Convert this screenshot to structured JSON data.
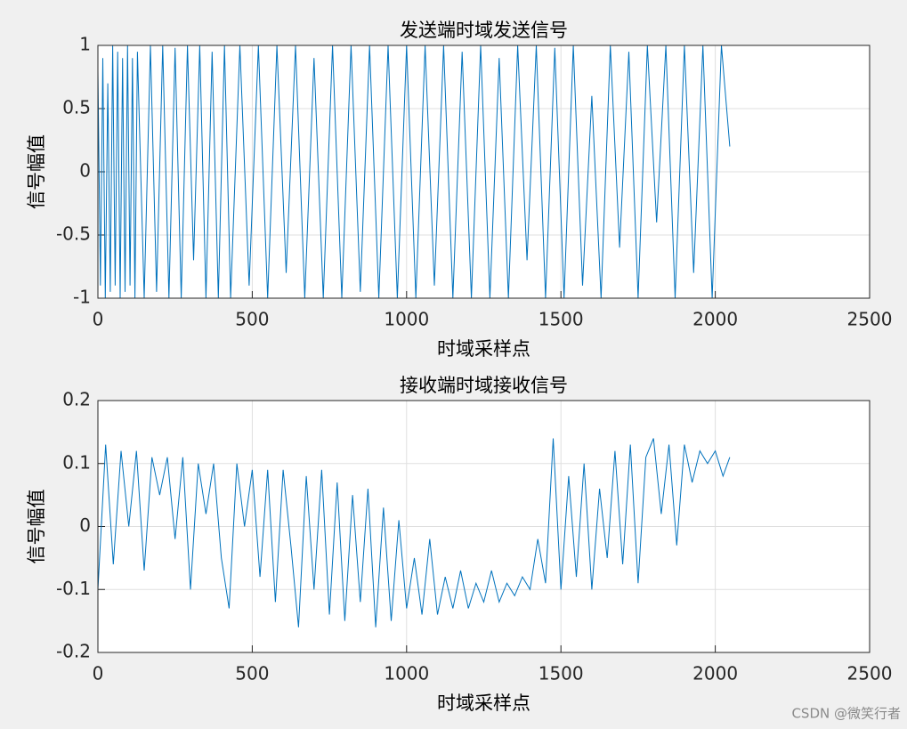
{
  "chart_data": [
    {
      "type": "line",
      "title": "发送端时域发送信号",
      "xlabel": "时域采样点",
      "ylabel": "信号幅值",
      "xlim": [
        0,
        2500
      ],
      "xticks": [
        0,
        500,
        1000,
        1500,
        2000,
        2500
      ],
      "ylim": [
        -1,
        1
      ],
      "yticks": [
        -1,
        -0.5,
        0,
        0.5,
        1
      ],
      "grid": true,
      "series": [
        {
          "color": "#0072bd",
          "x": [
            0,
            8,
            16,
            24,
            32,
            40,
            48,
            56,
            64,
            72,
            80,
            88,
            96,
            104,
            112,
            120,
            128,
            150,
            170,
            190,
            210,
            230,
            250,
            270,
            290,
            310,
            330,
            350,
            370,
            390,
            410,
            430,
            460,
            490,
            520,
            550,
            580,
            610,
            640,
            670,
            700,
            730,
            760,
            790,
            820,
            850,
            880,
            910,
            940,
            970,
            1000,
            1030,
            1060,
            1090,
            1120,
            1150,
            1180,
            1210,
            1240,
            1270,
            1300,
            1330,
            1360,
            1390,
            1420,
            1450,
            1480,
            1510,
            1540,
            1570,
            1600,
            1630,
            1660,
            1690,
            1720,
            1750,
            1780,
            1810,
            1840,
            1870,
            1900,
            1930,
            1960,
            1990,
            2020,
            2047
          ],
          "values": [
            0.8,
            -0.9,
            0.9,
            -1,
            0.7,
            -0.95,
            1,
            -0.9,
            0.95,
            -1,
            0.9,
            -0.95,
            1,
            -0.9,
            0.9,
            -1,
            0.95,
            -1,
            1,
            -0.95,
            1,
            -1,
            0.98,
            -1,
            1,
            -0.7,
            1,
            -1,
            0.95,
            -1,
            1,
            -1,
            1,
            -0.9,
            1,
            -1,
            1,
            -0.8,
            1,
            -1,
            0.9,
            -1,
            1,
            -1,
            1,
            -0.95,
            1,
            -1,
            1,
            -1,
            1,
            -1,
            1,
            -0.9,
            1,
            -1,
            0.95,
            -1,
            1,
            -1,
            0.9,
            -1,
            1,
            -0.7,
            1,
            -1,
            0.98,
            -1,
            1,
            -0.9,
            0.6,
            -1,
            1,
            -0.6,
            0.95,
            -1,
            1,
            -0.4,
            1,
            -1,
            1,
            -0.8,
            1,
            -1,
            1,
            0.2
          ]
        }
      ]
    },
    {
      "type": "line",
      "title": "接收端时域接收信号",
      "xlabel": "时域采样点",
      "ylabel": "信号幅值",
      "xlim": [
        0,
        2500
      ],
      "xticks": [
        0,
        500,
        1000,
        1500,
        2000,
        2500
      ],
      "ylim": [
        -0.2,
        0.2
      ],
      "yticks": [
        -0.2,
        -0.1,
        0,
        0.1,
        0.2
      ],
      "grid": true,
      "series": [
        {
          "color": "#0072bd",
          "x": [
            0,
            25,
            50,
            75,
            100,
            125,
            150,
            175,
            200,
            225,
            250,
            275,
            300,
            325,
            350,
            375,
            400,
            425,
            450,
            475,
            500,
            525,
            550,
            575,
            600,
            625,
            650,
            675,
            700,
            725,
            750,
            775,
            800,
            825,
            850,
            875,
            900,
            925,
            950,
            975,
            1000,
            1025,
            1050,
            1075,
            1100,
            1125,
            1150,
            1175,
            1200,
            1225,
            1250,
            1275,
            1300,
            1325,
            1350,
            1375,
            1400,
            1425,
            1450,
            1475,
            1500,
            1525,
            1550,
            1575,
            1600,
            1625,
            1650,
            1675,
            1700,
            1725,
            1750,
            1775,
            1800,
            1825,
            1850,
            1875,
            1900,
            1925,
            1950,
            1975,
            2000,
            2025,
            2047
          ],
          "values": [
            -0.1,
            0.13,
            -0.06,
            0.12,
            0.0,
            0.12,
            -0.07,
            0.11,
            0.05,
            0.11,
            -0.02,
            0.11,
            -0.1,
            0.1,
            0.02,
            0.1,
            -0.05,
            -0.13,
            0.1,
            0.0,
            0.09,
            -0.08,
            0.09,
            -0.12,
            0.09,
            -0.03,
            -0.16,
            0.08,
            -0.1,
            0.09,
            -0.14,
            0.07,
            -0.15,
            0.05,
            -0.12,
            0.06,
            -0.16,
            0.03,
            -0.15,
            0.01,
            -0.13,
            -0.05,
            -0.14,
            -0.02,
            -0.14,
            -0.08,
            -0.13,
            -0.07,
            -0.13,
            -0.09,
            -0.12,
            -0.07,
            -0.12,
            -0.09,
            -0.11,
            -0.08,
            -0.1,
            -0.02,
            -0.09,
            0.14,
            -0.1,
            0.08,
            -0.08,
            0.1,
            -0.1,
            0.06,
            -0.05,
            0.12,
            -0.06,
            0.13,
            -0.09,
            0.11,
            0.14,
            0.02,
            0.13,
            -0.03,
            0.13,
            0.07,
            0.12,
            0.1,
            0.12,
            0.08,
            0.11
          ]
        }
      ]
    }
  ],
  "watermark": "CSDN @微笑行者"
}
